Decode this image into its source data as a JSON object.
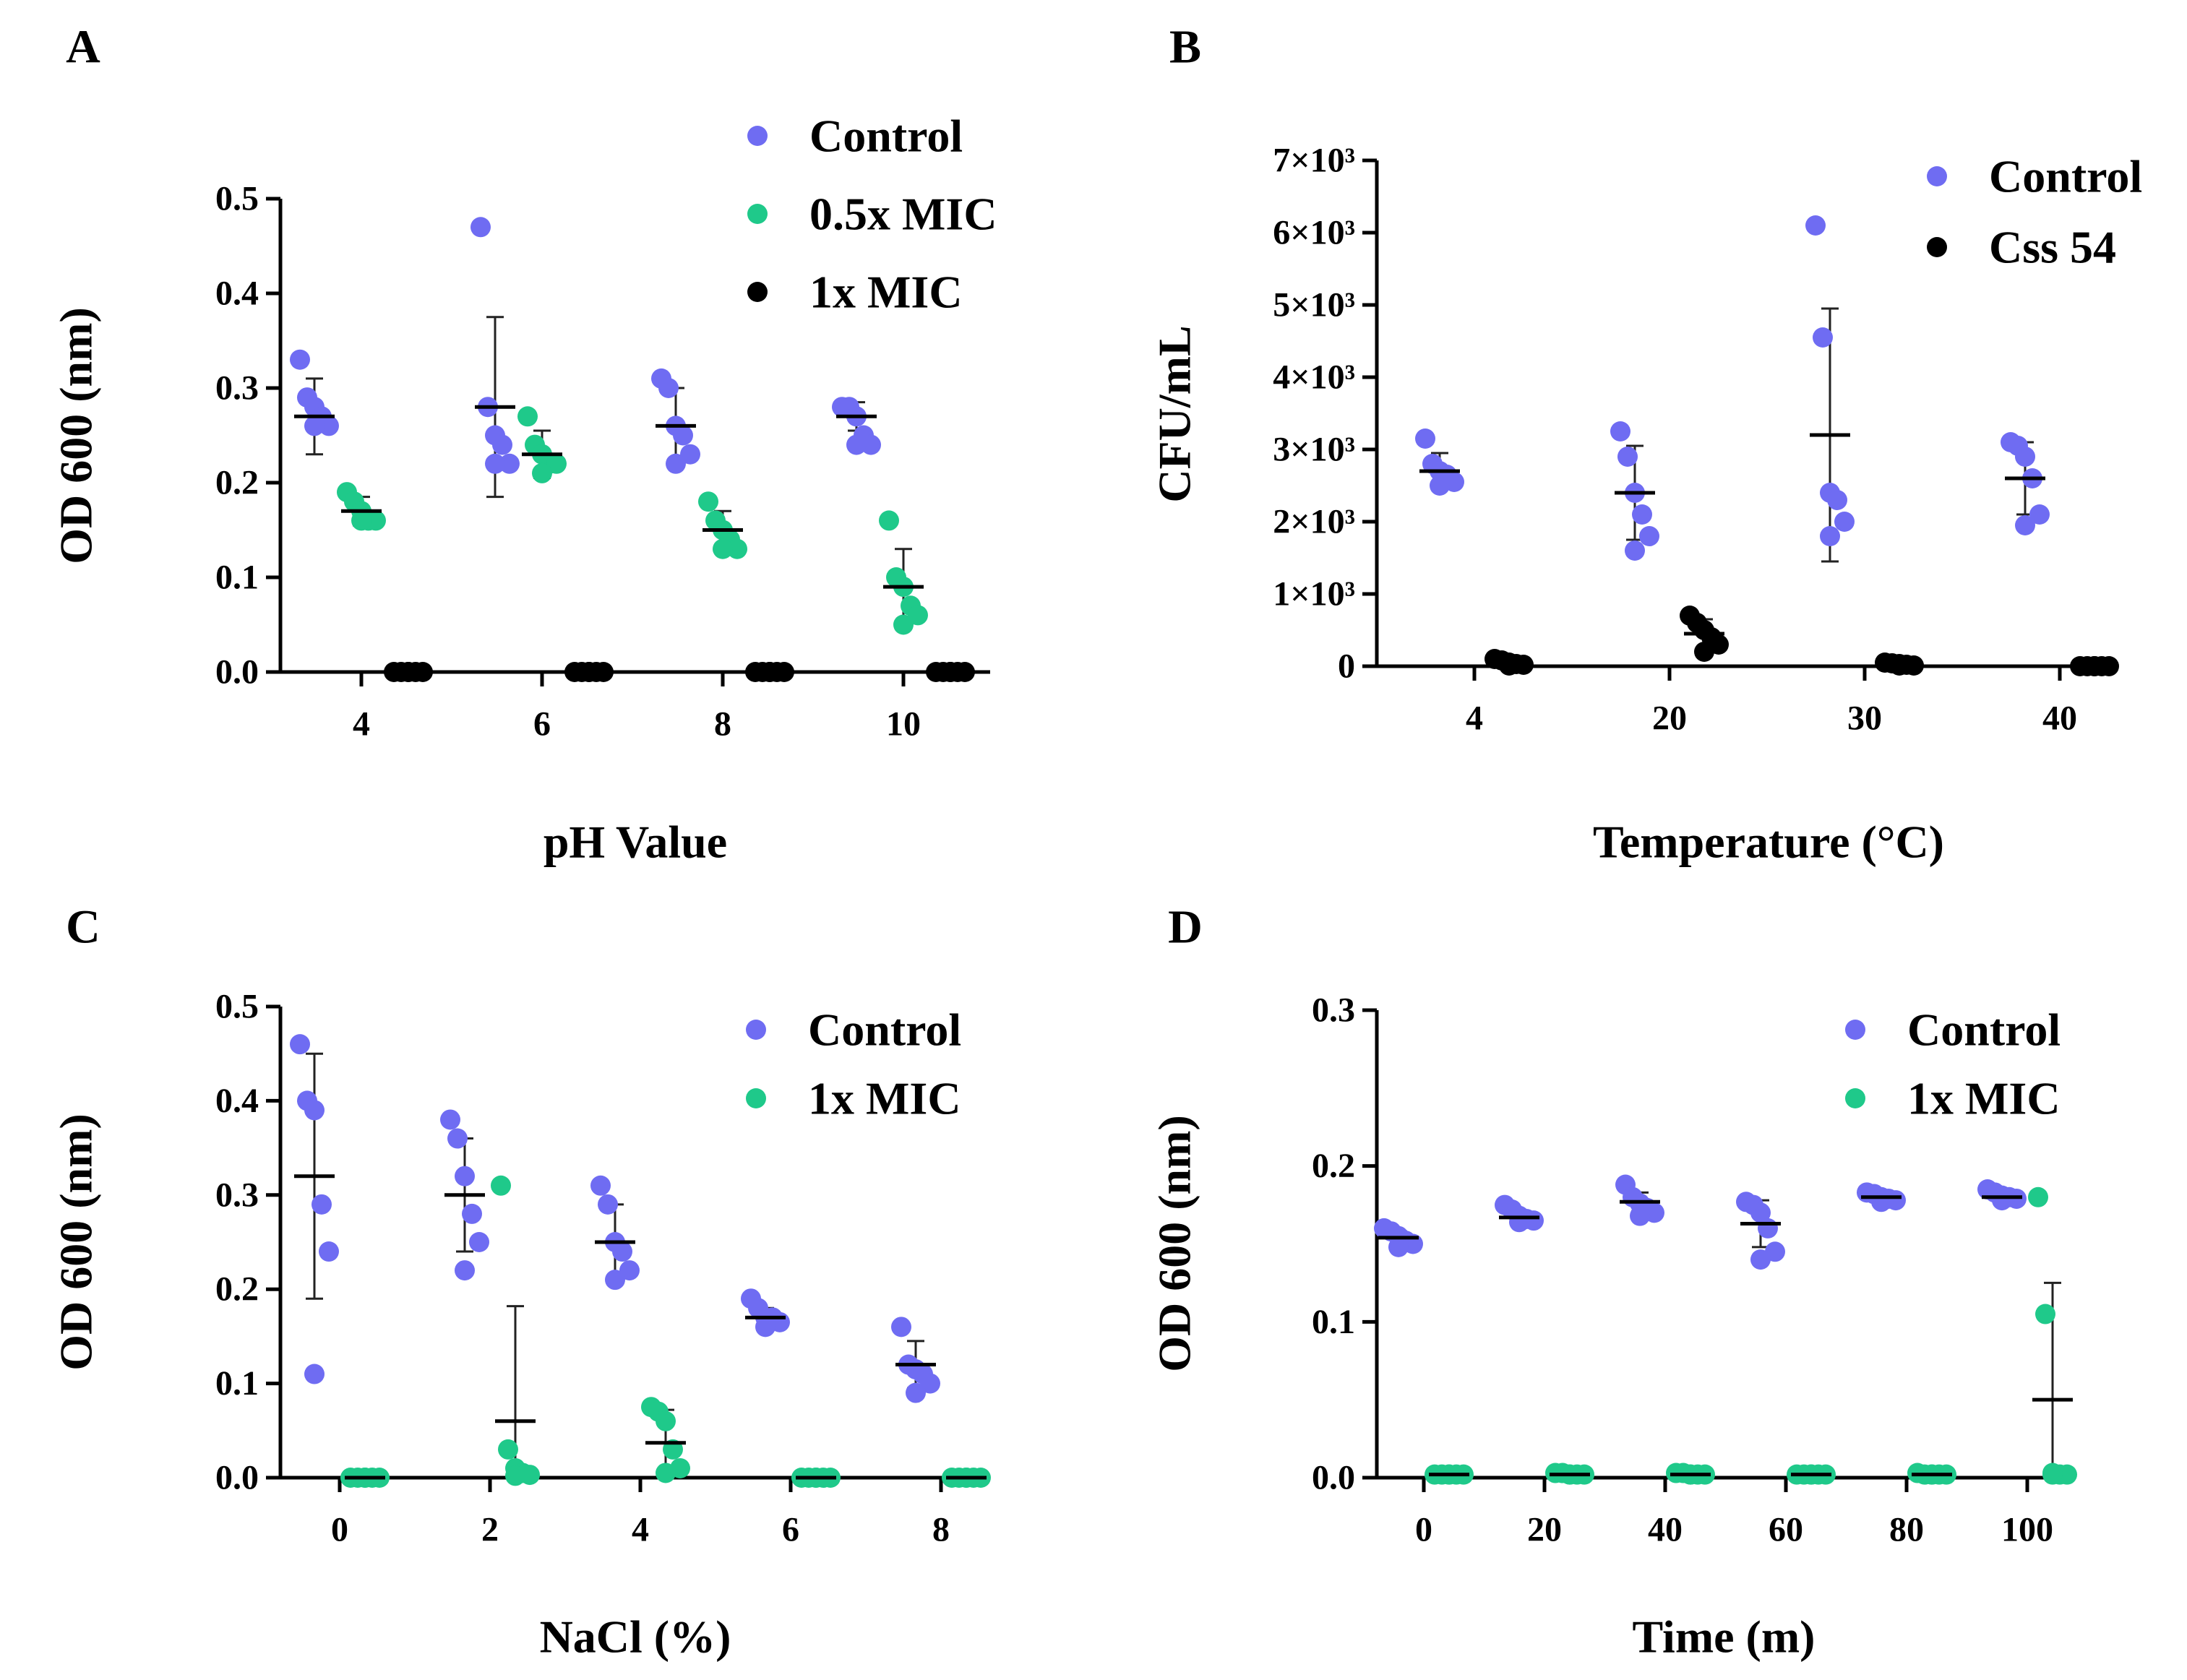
{
  "colors": {
    "control": "#6F6CF2",
    "mic": "#1FC98A",
    "dark": "#000000",
    "axis": "#000000"
  },
  "chart_data": [
    {
      "panel": "A",
      "type": "scatter",
      "title": "",
      "xlabel": "pH Value",
      "ylabel": "OD 600 (nm)",
      "categories": [
        "4",
        "6",
        "8",
        "10"
      ],
      "ylim": [
        0,
        0.5
      ],
      "yticks": [
        "0.0",
        "0.1",
        "0.2",
        "0.3",
        "0.4",
        "0.5"
      ],
      "legend": "top-right",
      "series": [
        {
          "name": "Control",
          "color_key": "control",
          "points": [
            [
              0.33,
              0.29,
              0.28,
              0.27,
              0.26,
              0.26
            ],
            [
              0.47,
              0.28,
              0.25,
              0.24,
              0.22,
              0.22
            ],
            [
              0.31,
              0.3,
              0.26,
              0.25,
              0.23,
              0.22
            ],
            [
              0.28,
              0.28,
              0.27,
              0.25,
              0.24,
              0.24
            ]
          ],
          "mean": [
            0.27,
            0.28,
            0.26,
            0.27
          ],
          "err": [
            0.04,
            0.095,
            0.04,
            0.015
          ]
        },
        {
          "name": "0.5x MIC",
          "color_key": "mic",
          "points": [
            [
              0.19,
              0.18,
              0.17,
              0.16,
              0.16,
              0.16
            ],
            [
              0.27,
              0.24,
              0.23,
              0.22,
              0.22,
              0.21
            ],
            [
              0.18,
              0.16,
              0.15,
              0.14,
              0.13,
              0.13
            ],
            [
              0.16,
              0.1,
              0.09,
              0.07,
              0.06,
              0.05
            ]
          ],
          "mean": [
            0.17,
            0.23,
            0.15,
            0.09
          ],
          "err": [
            0.015,
            0.025,
            0.02,
            0.04
          ]
        },
        {
          "name": "1x MIC",
          "color_key": "dark",
          "points": [
            [
              0,
              0,
              0,
              0,
              0,
              0
            ],
            [
              0,
              0,
              0,
              0,
              0,
              0
            ],
            [
              0,
              0,
              0,
              0,
              0,
              0
            ],
            [
              0,
              0,
              0,
              0,
              0,
              0
            ]
          ],
          "mean": [
            0,
            0,
            0,
            0
          ],
          "err": [
            0,
            0,
            0,
            0
          ]
        }
      ]
    },
    {
      "panel": "B",
      "type": "scatter",
      "title": "",
      "xlabel": "Temperature (°C)",
      "ylabel": "CFU/mL",
      "categories": [
        "4",
        "20",
        "30",
        "40"
      ],
      "ylim": [
        0,
        7000
      ],
      "yticks": [
        "0",
        "1×10³",
        "2×10³",
        "3×10³",
        "4×10³",
        "5×10³",
        "6×10³",
        "7×10³"
      ],
      "legend": "top-right",
      "series": [
        {
          "name": "Control",
          "color_key": "control",
          "points": [
            [
              3150,
              2800,
              2700,
              2650,
              2550,
              2500
            ],
            [
              3250,
              2900,
              2400,
              2100,
              1800,
              1600
            ],
            [
              6100,
              4550,
              2400,
              2300,
              2000,
              1800
            ],
            [
              3100,
              3050,
              2900,
              2600,
              2100,
              1950
            ]
          ],
          "mean": [
            2700,
            2400,
            3200,
            2600
          ],
          "err": [
            250,
            650,
            1750,
            500
          ]
        },
        {
          "name": "Css 54",
          "color_key": "dark",
          "points": [
            [
              100,
              80,
              50,
              30,
              20,
              10
            ],
            [
              700,
              600,
              500,
              400,
              300,
              200
            ],
            [
              50,
              40,
              30,
              20,
              10,
              10
            ],
            [
              0,
              0,
              0,
              0,
              0,
              0
            ]
          ],
          "mean": [
            40,
            450,
            30,
            0
          ],
          "err": [
            30,
            200,
            20,
            0
          ]
        }
      ]
    },
    {
      "panel": "C",
      "type": "scatter",
      "title": "",
      "xlabel": "NaCl (%)",
      "ylabel": "OD 600 (nm)",
      "categories": [
        "0",
        "2",
        "4",
        "6",
        "8"
      ],
      "ylim": [
        0,
        0.5
      ],
      "yticks": [
        "0.0",
        "0.1",
        "0.2",
        "0.3",
        "0.4",
        "0.5"
      ],
      "legend": "top-right",
      "series": [
        {
          "name": "Control",
          "color_key": "control",
          "points": [
            [
              0.46,
              0.4,
              0.39,
              0.29,
              0.24,
              0.11
            ],
            [
              0.38,
              0.36,
              0.32,
              0.28,
              0.25,
              0.22
            ],
            [
              0.31,
              0.29,
              0.25,
              0.24,
              0.22,
              0.21
            ],
            [
              0.19,
              0.18,
              0.17,
              0.17,
              0.165,
              0.16
            ],
            [
              0.16,
              0.12,
              0.115,
              0.11,
              0.1,
              0.09
            ]
          ],
          "mean": [
            0.32,
            0.3,
            0.25,
            0.17,
            0.12
          ],
          "err": [
            0.13,
            0.06,
            0.04,
            0.01,
            0.025
          ]
        },
        {
          "name": "1x MIC",
          "color_key": "mic",
          "points": [
            [
              0,
              0,
              0,
              0,
              0,
              0
            ],
            [
              0.31,
              0.03,
              0.01,
              0.005,
              0.003,
              0.002
            ],
            [
              0.075,
              0.07,
              0.06,
              0.03,
              0.01,
              0.005
            ],
            [
              0,
              0,
              0,
              0,
              0,
              0
            ],
            [
              0,
              0,
              0,
              0,
              0,
              0
            ]
          ],
          "mean": [
            0,
            0.06,
            0.037,
            0,
            0
          ],
          "err": [
            0,
            0.122,
            0.035,
            0,
            0
          ]
        }
      ]
    },
    {
      "panel": "D",
      "type": "scatter",
      "title": "",
      "xlabel": "Time (m)",
      "ylabel": "OD 600 (nm)",
      "categories": [
        "0",
        "20",
        "40",
        "60",
        "80",
        "100"
      ],
      "ylim": [
        0,
        0.3
      ],
      "yticks": [
        "0.0",
        "0.1",
        "0.2",
        "0.3"
      ],
      "legend": "top-right",
      "series": [
        {
          "name": "Control",
          "color_key": "control",
          "points": [
            [
              0.16,
              0.158,
              0.155,
              0.152,
              0.15,
              0.148
            ],
            [
              0.175,
              0.172,
              0.168,
              0.166,
              0.165,
              0.164
            ],
            [
              0.188,
              0.18,
              0.176,
              0.173,
              0.17,
              0.168
            ],
            [
              0.177,
              0.175,
              0.17,
              0.16,
              0.145,
              0.14
            ],
            [
              0.183,
              0.182,
              0.18,
              0.179,
              0.178,
              0.177
            ],
            [
              0.185,
              0.183,
              0.181,
              0.18,
              0.179,
              0.178
            ]
          ],
          "mean": [
            0.154,
            0.167,
            0.177,
            0.163,
            0.18,
            0.18
          ],
          "err": [
            0.004,
            0.004,
            0.006,
            0.015,
            0.002,
            0.003
          ]
        },
        {
          "name": "1x MIC",
          "color_key": "mic",
          "points": [
            [
              0.002,
              0.002,
              0.002,
              0.002,
              0.002,
              0.002
            ],
            [
              0.003,
              0.003,
              0.002,
              0.002,
              0.002,
              0.002
            ],
            [
              0.003,
              0.003,
              0.002,
              0.002,
              0.002,
              0.002
            ],
            [
              0.002,
              0.002,
              0.002,
              0.002,
              0.002,
              0.002
            ],
            [
              0.003,
              0.002,
              0.002,
              0.002,
              0.002,
              0.002
            ],
            [
              0.18,
              0.105,
              0.003,
              0.002,
              0.002,
              0.002
            ]
          ],
          "mean": [
            0.002,
            0.002,
            0.002,
            0.002,
            0.002,
            0.05
          ],
          "err": [
            0,
            0,
            0,
            0,
            0,
            0.075
          ]
        }
      ]
    }
  ]
}
